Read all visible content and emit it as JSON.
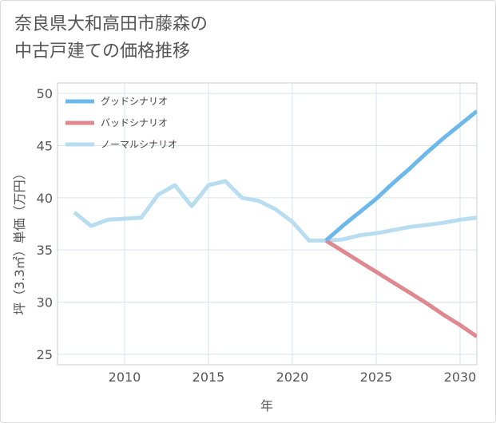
{
  "chart_data": {
    "type": "line",
    "title": "奈良県大和高田市藤森の\n中古戸建ての価格推移",
    "xlabel": "年",
    "ylabel": "坪（3.3㎡）単価（万円）",
    "xlim": [
      2006,
      2031
    ],
    "ylim": [
      24,
      51
    ],
    "x_ticks": [
      2010,
      2015,
      2020,
      2025,
      2030
    ],
    "y_ticks": [
      25,
      30,
      35,
      40,
      45,
      50
    ],
    "grid": true,
    "legend_position": "top-left",
    "series": [
      {
        "name": "グッドシナリオ",
        "color": "#6cb8ea",
        "x": [
          2022,
          2023,
          2024,
          2025,
          2026,
          2027,
          2028,
          2029,
          2030,
          2031
        ],
        "y": [
          35.9,
          37.3,
          38.6,
          39.9,
          41.4,
          42.8,
          44.3,
          45.7,
          47.0,
          48.3
        ]
      },
      {
        "name": "バッドシナリオ",
        "color": "#e08890",
        "x": [
          2022,
          2023,
          2024,
          2025,
          2026,
          2027,
          2028,
          2029,
          2030,
          2031
        ],
        "y": [
          35.9,
          34.9,
          33.9,
          32.9,
          31.9,
          30.9,
          29.9,
          28.8,
          27.8,
          26.7
        ]
      },
      {
        "name": "ノーマルシナリオ",
        "color": "#b9ddf0",
        "x": [
          2007,
          2008,
          2009,
          2010,
          2011,
          2012,
          2013,
          2014,
          2015,
          2016,
          2017,
          2018,
          2019,
          2020,
          2021,
          2022,
          2023,
          2024,
          2025,
          2026,
          2027,
          2028,
          2029,
          2030,
          2031
        ],
        "y": [
          38.6,
          37.3,
          37.9,
          38.0,
          38.1,
          40.3,
          41.2,
          39.2,
          41.2,
          41.6,
          40.0,
          39.7,
          38.9,
          37.7,
          35.9,
          35.9,
          36.0,
          36.4,
          36.6,
          36.9,
          37.2,
          37.4,
          37.6,
          37.9,
          38.1
        ]
      }
    ]
  }
}
